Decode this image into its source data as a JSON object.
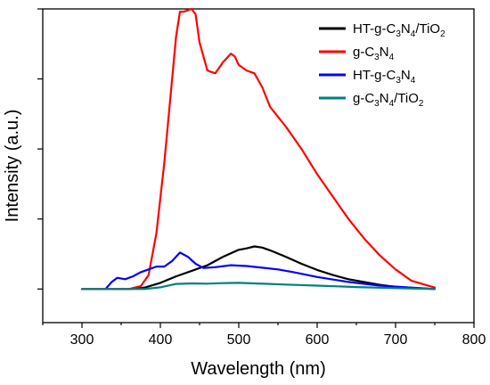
{
  "chart_data": {
    "type": "line",
    "xlabel": "Wavelength (nm)",
    "ylabel": "Intensity (a.u.)",
    "xlim": [
      250,
      800
    ],
    "ylim": [
      -0.12,
      1.0
    ],
    "x_ticks": [
      300,
      400,
      500,
      600,
      700,
      800
    ],
    "y_tick_values": [
      0,
      0.25,
      0.5,
      0.75,
      1.0
    ],
    "y_tick_labels_shown": false,
    "grid": false,
    "legend_position": "top-right",
    "series": [
      {
        "name": "HT-g-C3N4/TiO2",
        "label_parts": [
          [
            "HT-g-C",
            ""
          ],
          [
            "3",
            "sub"
          ],
          [
            "N",
            ""
          ],
          [
            "4",
            "sub"
          ],
          [
            "/TiO",
            ""
          ],
          [
            "2",
            "sub"
          ]
        ],
        "color": "#000000",
        "x": [
          300,
          340,
          360,
          380,
          400,
          420,
          440,
          460,
          480,
          500,
          510,
          520,
          530,
          540,
          560,
          580,
          600,
          620,
          640,
          660,
          680,
          700,
          720,
          750
        ],
        "y": [
          0,
          0,
          0,
          0.005,
          0.022,
          0.045,
          0.065,
          0.085,
          0.115,
          0.14,
          0.145,
          0.152,
          0.148,
          0.138,
          0.115,
          0.09,
          0.068,
          0.05,
          0.035,
          0.025,
          0.015,
          0.008,
          0.004,
          0
        ]
      },
      {
        "name": "g-C3N4",
        "label_parts": [
          [
            "g-C",
            ""
          ],
          [
            "3",
            "sub"
          ],
          [
            "N",
            ""
          ],
          [
            "4",
            "sub"
          ]
        ],
        "color": "#ff0000",
        "x": [
          300,
          360,
          375,
          385,
          395,
          405,
          415,
          420,
          425,
          430,
          440,
          445,
          450,
          460,
          470,
          480,
          490,
          495,
          500,
          510,
          520,
          530,
          540,
          560,
          580,
          600,
          620,
          640,
          660,
          680,
          700,
          720,
          750
        ],
        "y": [
          0,
          0,
          0.01,
          0.05,
          0.2,
          0.45,
          0.75,
          0.9,
          0.99,
          0.99,
          1.0,
          0.98,
          0.88,
          0.78,
          0.77,
          0.81,
          0.84,
          0.83,
          0.8,
          0.78,
          0.77,
          0.72,
          0.65,
          0.58,
          0.5,
          0.41,
          0.33,
          0.25,
          0.18,
          0.12,
          0.07,
          0.03,
          0.005
        ]
      },
      {
        "name": "HT-g-C3N4",
        "label_parts": [
          [
            "HT-g-C",
            ""
          ],
          [
            "3",
            "sub"
          ],
          [
            "N",
            ""
          ],
          [
            "4",
            "sub"
          ]
        ],
        "color": "#0000ff",
        "x": [
          330,
          338,
          345,
          355,
          365,
          375,
          385,
          395,
          405,
          415,
          425,
          435,
          445,
          455,
          470,
          490,
          510,
          530,
          550,
          570,
          600,
          640,
          680,
          720,
          750
        ],
        "y": [
          0,
          0.025,
          0.04,
          0.035,
          0.045,
          0.06,
          0.07,
          0.08,
          0.08,
          0.1,
          0.13,
          0.115,
          0.09,
          0.075,
          0.078,
          0.085,
          0.082,
          0.076,
          0.07,
          0.06,
          0.043,
          0.025,
          0.012,
          0.005,
          0
        ]
      },
      {
        "name": "g-C3N4/TiO2",
        "label_parts": [
          [
            "g-C",
            ""
          ],
          [
            "3",
            "sub"
          ],
          [
            "N",
            ""
          ],
          [
            "4",
            "sub"
          ],
          [
            "/TiO",
            ""
          ],
          [
            "2",
            "sub"
          ]
        ],
        "color": "#008080",
        "x": [
          300,
          380,
          400,
          420,
          440,
          460,
          480,
          500,
          520,
          540,
          560,
          600,
          650,
          700,
          750
        ],
        "y": [
          0,
          0,
          0.006,
          0.018,
          0.02,
          0.019,
          0.021,
          0.022,
          0.02,
          0.018,
          0.016,
          0.012,
          0.007,
          0.003,
          0
        ]
      }
    ]
  }
}
